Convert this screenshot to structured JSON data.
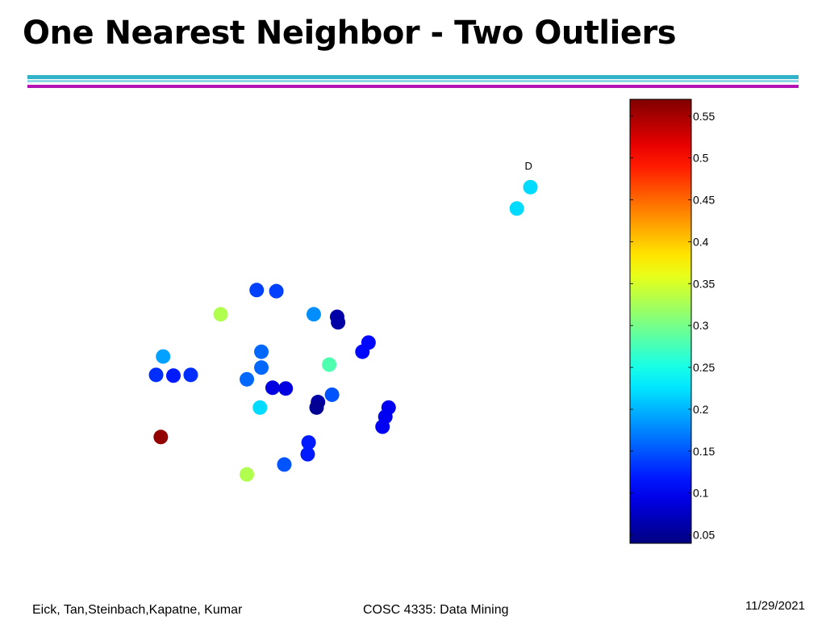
{
  "slide": {
    "title": "One Nearest Neighbor - Two Outliers",
    "footer_left": "Eick, Tan,Steinbach,Kapatne, Kumar",
    "footer_center": "COSC 4335: Data Mining",
    "footer_right": "11/29/2021",
    "rule_colors": [
      "#33b3c9",
      "#8fd9e6",
      "#b413b4"
    ]
  },
  "chart_data": {
    "type": "scatter",
    "title": "",
    "xlabel": "",
    "ylabel": "",
    "axes_visible": false,
    "xlim": [
      0,
      1
    ],
    "ylim": [
      0,
      1
    ],
    "colormap": "jet",
    "clim": [
      0.04,
      0.57
    ],
    "colorbar": {
      "position": "right",
      "ticks": [
        0.55,
        0.5,
        0.45,
        0.4,
        0.35,
        0.3,
        0.25,
        0.2,
        0.15,
        0.1,
        0.05
      ],
      "tick_labels": [
        "0.55",
        "0.5",
        "0.45",
        "0.4",
        "0.35",
        "0.3",
        "0.25",
        "0.2",
        "0.15",
        "0.1",
        "0.05"
      ]
    },
    "annotations": [
      {
        "text": "D",
        "x": 0.94,
        "y": 0.945
      }
    ],
    "points": [
      {
        "x": 0.944,
        "y": 0.897,
        "value": 0.22
      },
      {
        "x": 0.915,
        "y": 0.839,
        "value": 0.22
      },
      {
        "x": 0.359,
        "y": 0.617,
        "value": 0.14
      },
      {
        "x": 0.401,
        "y": 0.614,
        "value": 0.14
      },
      {
        "x": 0.282,
        "y": 0.551,
        "value": 0.33
      },
      {
        "x": 0.481,
        "y": 0.551,
        "value": 0.18
      },
      {
        "x": 0.531,
        "y": 0.544,
        "value": 0.06
      },
      {
        "x": 0.533,
        "y": 0.529,
        "value": 0.06
      },
      {
        "x": 0.598,
        "y": 0.474,
        "value": 0.11
      },
      {
        "x": 0.585,
        "y": 0.449,
        "value": 0.11
      },
      {
        "x": 0.369,
        "y": 0.449,
        "value": 0.16
      },
      {
        "x": 0.159,
        "y": 0.436,
        "value": 0.19
      },
      {
        "x": 0.369,
        "y": 0.406,
        "value": 0.16
      },
      {
        "x": 0.514,
        "y": 0.414,
        "value": 0.28
      },
      {
        "x": 0.144,
        "y": 0.386,
        "value": 0.13
      },
      {
        "x": 0.181,
        "y": 0.384,
        "value": 0.12
      },
      {
        "x": 0.218,
        "y": 0.386,
        "value": 0.13
      },
      {
        "x": 0.338,
        "y": 0.374,
        "value": 0.16
      },
      {
        "x": 0.393,
        "y": 0.351,
        "value": 0.09
      },
      {
        "x": 0.421,
        "y": 0.349,
        "value": 0.09
      },
      {
        "x": 0.52,
        "y": 0.332,
        "value": 0.15
      },
      {
        "x": 0.49,
        "y": 0.312,
        "value": 0.06
      },
      {
        "x": 0.487,
        "y": 0.297,
        "value": 0.05
      },
      {
        "x": 0.366,
        "y": 0.297,
        "value": 0.22
      },
      {
        "x": 0.641,
        "y": 0.297,
        "value": 0.1
      },
      {
        "x": 0.634,
        "y": 0.272,
        "value": 0.1
      },
      {
        "x": 0.628,
        "y": 0.245,
        "value": 0.1
      },
      {
        "x": 0.154,
        "y": 0.217,
        "value": 0.56
      },
      {
        "x": 0.47,
        "y": 0.202,
        "value": 0.12
      },
      {
        "x": 0.468,
        "y": 0.17,
        "value": 0.12
      },
      {
        "x": 0.418,
        "y": 0.142,
        "value": 0.15
      },
      {
        "x": 0.338,
        "y": 0.115,
        "value": 0.33
      }
    ]
  }
}
